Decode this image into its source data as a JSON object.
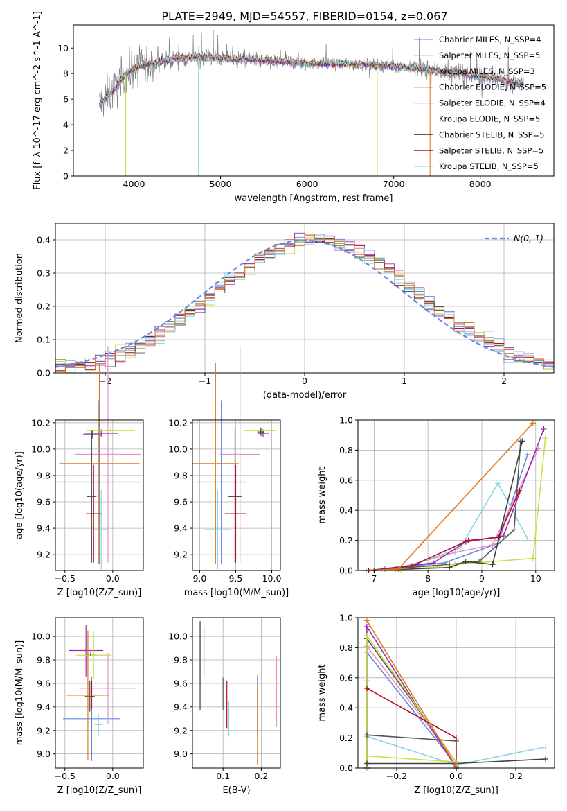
{
  "figure_title": "PLATE=2949, MJD=54557, FIBERID=0154, z=0.067",
  "series_colors": [
    "#6488e0",
    "#e88fc8",
    "#80d8e0",
    "#555555",
    "#9a2ab0",
    "#c8e040",
    "#404040",
    "#b01020",
    "#a0e0e8"
  ],
  "chart_data": [
    {
      "id": "spectrum",
      "type": "line",
      "title": "PLATE=2949, MJD=54557, FIBERID=0154, z=0.067",
      "xlabel": "wavelength [Angstrom, rest frame]",
      "ylabel": "Flux [f_λ 10^-17 erg cm^-2 s^-1 A^-1]",
      "xlim": [
        3300,
        8850
      ],
      "ylim": [
        0,
        11.8
      ],
      "xticks": [
        4000,
        5000,
        6000,
        7000,
        8000
      ],
      "yticks": [
        0,
        2,
        4,
        6,
        8,
        10
      ],
      "grid": false,
      "legend_placement": "upper right",
      "legend": [
        {
          "label": "Chabrier MILES, N_SSP=4",
          "color": "#6488e0"
        },
        {
          "label": "Salpeter MILES, N_SSP=5",
          "color": "#e88fc8"
        },
        {
          "label": "Kroupa MILES, N_SSP=3",
          "color": "#80d8e0"
        },
        {
          "label": "Chabrier ELODIE, N_SSP=5",
          "color": "#555555"
        },
        {
          "label": "Salpeter ELODIE, N_SSP=4",
          "color": "#9a2ab0"
        },
        {
          "label": "Kroupa ELODIE, N_SSP=5",
          "color": "#c8e040"
        },
        {
          "label": "Chabrier STELIB, N_SSP=5",
          "color": "#404040"
        },
        {
          "label": "Salpeter STELIB, N_SSP=5",
          "color": "#b01020"
        },
        {
          "label": "Kroupa STELIB, N_SSP=5",
          "color": "#a0e0e8"
        }
      ],
      "data_color": "#808080",
      "continuum": {
        "x": [
          3600,
          3700,
          3800,
          3900,
          4000,
          4200,
          4500,
          4800,
          5000,
          5200,
          5500,
          5800,
          6000,
          6300,
          6500,
          7000,
          7500,
          8000,
          8300,
          8500
        ],
        "y": [
          5.6,
          6.2,
          7.0,
          7.9,
          8.4,
          8.8,
          9.2,
          9.3,
          9.2,
          9.15,
          9.0,
          8.9,
          8.8,
          8.75,
          8.75,
          8.6,
          8.2,
          7.8,
          7.4,
          7.2
        ]
      },
      "spikes_down": [
        {
          "x": 3905,
          "y": 0.0,
          "color": "#c8e040"
        },
        {
          "x": 4745,
          "y": 0.0,
          "color": "#80d8e0"
        },
        {
          "x": 6810,
          "y": 0.0,
          "color": "#c8e040"
        },
        {
          "x": 7420,
          "y": 0.0,
          "color": "#e07820"
        }
      ]
    },
    {
      "id": "residuals",
      "type": "histogram",
      "xlabel": "(data-model)/error",
      "ylabel": "Normed distribution",
      "xlim": [
        -2.5,
        2.5
      ],
      "ylim": [
        0,
        0.45
      ],
      "xticks": [
        -2,
        -1,
        0,
        1,
        2
      ],
      "yticks": [
        0.0,
        0.1,
        0.2,
        0.3,
        0.4
      ],
      "grid": true,
      "legend_placement": "upper right",
      "legend": [
        {
          "label": "N(0, 1)",
          "style": "dashed",
          "color": "#6488e0"
        }
      ],
      "bin_width": 0.1
    },
    {
      "id": "age_vs_Z",
      "type": "errorbar",
      "xlabel": "Z [log10(Z/Z_sun)]",
      "ylabel": "age [log10(age/yr)]",
      "xlim": [
        -0.6,
        0.32
      ],
      "ylim": [
        9.08,
        10.22
      ],
      "xticks": [
        -0.5,
        0.0
      ],
      "yticks": [
        9.2,
        9.4,
        9.6,
        9.8,
        10.0,
        10.2
      ],
      "grid": true,
      "points": [
        {
          "x": -0.15,
          "y": 9.75,
          "xerr": 0.45,
          "yerr": 0.62,
          "color": "#6488e0"
        },
        {
          "x": -0.05,
          "y": 9.96,
          "xerr": 0.35,
          "yerr": 0.82,
          "color": "#e88fc8"
        },
        {
          "x": -0.12,
          "y": 9.39,
          "xerr": 0.08,
          "yerr": 0.3,
          "color": "#80d8e0"
        },
        {
          "x": -0.22,
          "y": 9.64,
          "xerr": 0.05,
          "yerr": 0.5,
          "color": "#555555"
        },
        {
          "x": -0.12,
          "y": 10.12,
          "xerr": 0.18,
          "yerr": 0.03,
          "color": "#9a2ab0"
        },
        {
          "x": -0.02,
          "y": 10.14,
          "xerr": 0.25,
          "yerr": 0.03,
          "color": "#c8e040"
        },
        {
          "x": -0.21,
          "y": 10.11,
          "xerr": 0.1,
          "yerr": 0.03,
          "color": "#404040"
        },
        {
          "x": -0.2,
          "y": 9.51,
          "xerr": 0.08,
          "yerr": 0.37,
          "color": "#b01020"
        },
        {
          "x": -0.14,
          "y": 9.89,
          "xerr": 0.42,
          "yerr": 0.76,
          "color": "#e07820"
        }
      ]
    },
    {
      "id": "age_vs_mass",
      "type": "errorbar",
      "xlabel": "mass [log10(M/M_sun)]",
      "ylabel": "",
      "xlim": [
        8.9,
        10.12
      ],
      "ylim": [
        9.08,
        10.22
      ],
      "xticks": [
        9.0,
        9.5,
        10.0
      ],
      "yticks": [
        9.2,
        9.4,
        9.6,
        9.8,
        10.0,
        10.2
      ],
      "grid": true,
      "points": [
        {
          "x": 9.3,
          "y": 9.75,
          "xerr": 0.35,
          "yerr": 0.62,
          "color": "#6488e0"
        },
        {
          "x": 9.56,
          "y": 9.96,
          "xerr": 0.28,
          "yerr": 0.82,
          "color": "#e88fc8"
        },
        {
          "x": 9.25,
          "y": 9.39,
          "xerr": 0.18,
          "yerr": 0.3,
          "color": "#80d8e0"
        },
        {
          "x": 9.49,
          "y": 9.64,
          "xerr": 0.1,
          "yerr": 0.5,
          "color": "#555555"
        },
        {
          "x": 9.88,
          "y": 10.12,
          "xerr": 0.08,
          "yerr": 0.03,
          "color": "#9a2ab0"
        },
        {
          "x": 9.84,
          "y": 10.14,
          "xerr": 0.22,
          "yerr": 0.03,
          "color": "#c8e040"
        },
        {
          "x": 9.85,
          "y": 10.13,
          "xerr": 0.05,
          "yerr": 0.03,
          "color": "#404040"
        },
        {
          "x": 9.5,
          "y": 9.51,
          "xerr": 0.15,
          "yerr": 0.37,
          "color": "#b01020"
        },
        {
          "x": 9.22,
          "y": 9.89,
          "xerr": 0.32,
          "yerr": 0.76,
          "color": "#e07820"
        }
      ]
    },
    {
      "id": "weight_vs_age",
      "type": "line",
      "xlabel": "age [log10(age/yr)]",
      "ylabel": "mass weight",
      "xlim": [
        6.7,
        10.35
      ],
      "ylim": [
        0,
        1.0
      ],
      "xticks": [
        7,
        8,
        9,
        10
      ],
      "yticks": [
        0.0,
        0.2,
        0.4,
        0.6,
        0.8,
        1.0
      ],
      "grid": true,
      "series": [
        {
          "color": "#6488e0",
          "x": [
            6.85,
            7.2,
            8.3,
            9.3,
            9.85
          ],
          "y": [
            0.0,
            0.01,
            0.05,
            0.18,
            0.77
          ]
        },
        {
          "color": "#e88fc8",
          "x": [
            6.9,
            7.4,
            8.5,
            9.2,
            10.05
          ],
          "y": [
            0.0,
            0.01,
            0.12,
            0.17,
            0.81
          ]
        },
        {
          "color": "#80d8e0",
          "x": [
            6.9,
            7.6,
            8.6,
            9.3,
            9.85
          ],
          "y": [
            0.0,
            0.02,
            0.15,
            0.58,
            0.21
          ]
        },
        {
          "color": "#555555",
          "x": [
            6.9,
            8.4,
            8.95,
            9.6,
            9.72
          ],
          "y": [
            0.0,
            0.04,
            0.06,
            0.27,
            0.86
          ]
        },
        {
          "color": "#9a2ab0",
          "x": [
            6.9,
            8.1,
            8.7,
            9.4,
            10.15
          ],
          "y": [
            0.0,
            0.05,
            0.19,
            0.23,
            0.94
          ]
        },
        {
          "color": "#c8e040",
          "x": [
            6.9,
            7.5,
            8.5,
            9.95,
            10.18
          ],
          "y": [
            0.0,
            0.0,
            0.04,
            0.08,
            0.88
          ]
        },
        {
          "color": "#404040",
          "x": [
            7.0,
            8.4,
            8.7,
            9.2,
            9.75
          ],
          "y": [
            0.0,
            0.02,
            0.06,
            0.04,
            0.86
          ]
        },
        {
          "color": "#b01020",
          "x": [
            6.9,
            7.7,
            8.75,
            9.3,
            9.7
          ],
          "y": [
            0.0,
            0.03,
            0.2,
            0.22,
            0.53
          ]
        },
        {
          "color": "#e07820",
          "x": [
            6.85,
            7.45,
            9.95
          ],
          "y": [
            0.0,
            0.01,
            0.98
          ]
        }
      ]
    },
    {
      "id": "mass_vs_Z",
      "type": "errorbar",
      "xlabel": "Z [log10(Z/Z_sun)]",
      "ylabel": "mass [log10(M/M_sun)]",
      "xlim": [
        -0.6,
        0.32
      ],
      "ylim": [
        8.88,
        10.16
      ],
      "xticks": [
        -0.5,
        0.0
      ],
      "yticks": [
        9.0,
        9.2,
        9.4,
        9.6,
        9.8,
        10.0
      ],
      "grid": true,
      "points": [
        {
          "x": -0.22,
          "y": 9.3,
          "xerr": 0.3,
          "yerr": 0.36,
          "color": "#6488e0"
        },
        {
          "x": -0.05,
          "y": 9.56,
          "xerr": 0.3,
          "yerr": 0.3,
          "color": "#e88fc8"
        },
        {
          "x": -0.15,
          "y": 9.25,
          "xerr": 0.04,
          "yerr": 0.1,
          "color": "#80d8e0"
        },
        {
          "x": -0.24,
          "y": 9.49,
          "xerr": 0.05,
          "yerr": 0.13,
          "color": "#555555"
        },
        {
          "x": -0.28,
          "y": 9.88,
          "xerr": 0.18,
          "yerr": 0.22,
          "color": "#9a2ab0"
        },
        {
          "x": -0.2,
          "y": 9.84,
          "xerr": 0.18,
          "yerr": 0.2,
          "color": "#c8e040"
        },
        {
          "x": -0.23,
          "y": 9.85,
          "xerr": 0.06,
          "yerr": 0.02,
          "color": "#404040"
        },
        {
          "x": -0.22,
          "y": 9.5,
          "xerr": 0.04,
          "yerr": 0.12,
          "color": "#b01020"
        },
        {
          "x": -0.26,
          "y": 9.5,
          "xerr": 0.22,
          "yerr": 0.55,
          "color": "#e07820"
        }
      ]
    },
    {
      "id": "mass_vs_EBV",
      "type": "errorbar",
      "xlabel": "E(B-V)",
      "ylabel": "",
      "xlim": [
        0.02,
        0.25
      ],
      "ylim": [
        8.88,
        10.16
      ],
      "xticks": [
        0.1,
        0.2
      ],
      "yticks": [
        9.0,
        9.2,
        9.4,
        9.6,
        9.8,
        10.0
      ],
      "grid": true,
      "points": [
        {
          "x": 0.19,
          "y": 9.42,
          "yerr": 0.25,
          "color": "#6488e0"
        },
        {
          "x": 0.24,
          "y": 9.53,
          "yerr": 0.3,
          "color": "#e88fc8"
        },
        {
          "x": 0.115,
          "y": 9.3,
          "yerr": 0.15,
          "color": "#80d8e0"
        },
        {
          "x": 0.1,
          "y": 9.51,
          "yerr": 0.14,
          "color": "#555555"
        },
        {
          "x": 0.05,
          "y": 9.87,
          "yerr": 0.22,
          "color": "#9a2ab0"
        },
        {
          "x": 0.04,
          "y": 9.84,
          "yerr": 0.26,
          "color": "#c8e040"
        },
        {
          "x": 0.04,
          "y": 9.75,
          "yerr": 0.38,
          "color": "#404040"
        },
        {
          "x": 0.11,
          "y": 9.42,
          "yerr": 0.2,
          "color": "#b01020"
        },
        {
          "x": 0.19,
          "y": 9.25,
          "yerr": 0.34,
          "color": "#e07820"
        }
      ]
    },
    {
      "id": "weight_vs_Z",
      "type": "line",
      "xlabel": "Z [log10(Z/Z_sun)]",
      "ylabel": "mass weight",
      "xlim": [
        -0.33,
        0.33
      ],
      "ylim": [
        0,
        1.0
      ],
      "xticks": [
        -0.2,
        0.0,
        0.2
      ],
      "yticks": [
        0.0,
        0.2,
        0.4,
        0.6,
        0.8,
        1.0
      ],
      "grid": true,
      "series": [
        {
          "color": "#6488e0",
          "x": [
            -0.3,
            -0.3,
            0.0
          ],
          "y": [
            0.0,
            0.77,
            0.02
          ]
        },
        {
          "color": "#e88fc8",
          "x": [
            -0.3,
            -0.3,
            0.0
          ],
          "y": [
            0.0,
            0.81,
            0.04
          ]
        },
        {
          "color": "#80d8e0",
          "x": [
            -0.3,
            -0.3,
            0.0,
            0.3
          ],
          "y": [
            0.58,
            0.21,
            0.02,
            0.14
          ]
        },
        {
          "color": "#555555",
          "x": [
            -0.3,
            -0.3,
            0.0
          ],
          "y": [
            0.0,
            0.86,
            0.04
          ]
        },
        {
          "color": "#9a2ab0",
          "x": [
            -0.3,
            -0.3,
            0.0
          ],
          "y": [
            0.0,
            0.94,
            0.0
          ]
        },
        {
          "color": "#c8e040",
          "x": [
            -0.3,
            -0.3,
            0.0
          ],
          "y": [
            0.0,
            0.88,
            0.04
          ]
        },
        {
          "color": "#404040",
          "x": [
            -0.3,
            0.0,
            0.3
          ],
          "y": [
            0.03,
            0.03,
            0.06
          ]
        },
        {
          "color": "#b01020",
          "x": [
            -0.3,
            0.0,
            0.0
          ],
          "y": [
            0.53,
            0.2,
            0.0
          ]
        },
        {
          "color": "#e07820",
          "x": [
            -0.3,
            0.0,
            0.0
          ],
          "y": [
            0.98,
            0.01,
            0.0
          ]
        },
        {
          "color": "#c8e040",
          "x": [
            -0.3,
            0.0
          ],
          "y": [
            0.08,
            0.04
          ]
        },
        {
          "color": "#555555",
          "x": [
            -0.3,
            0.0
          ],
          "y": [
            0.22,
            0.18
          ]
        }
      ]
    }
  ]
}
